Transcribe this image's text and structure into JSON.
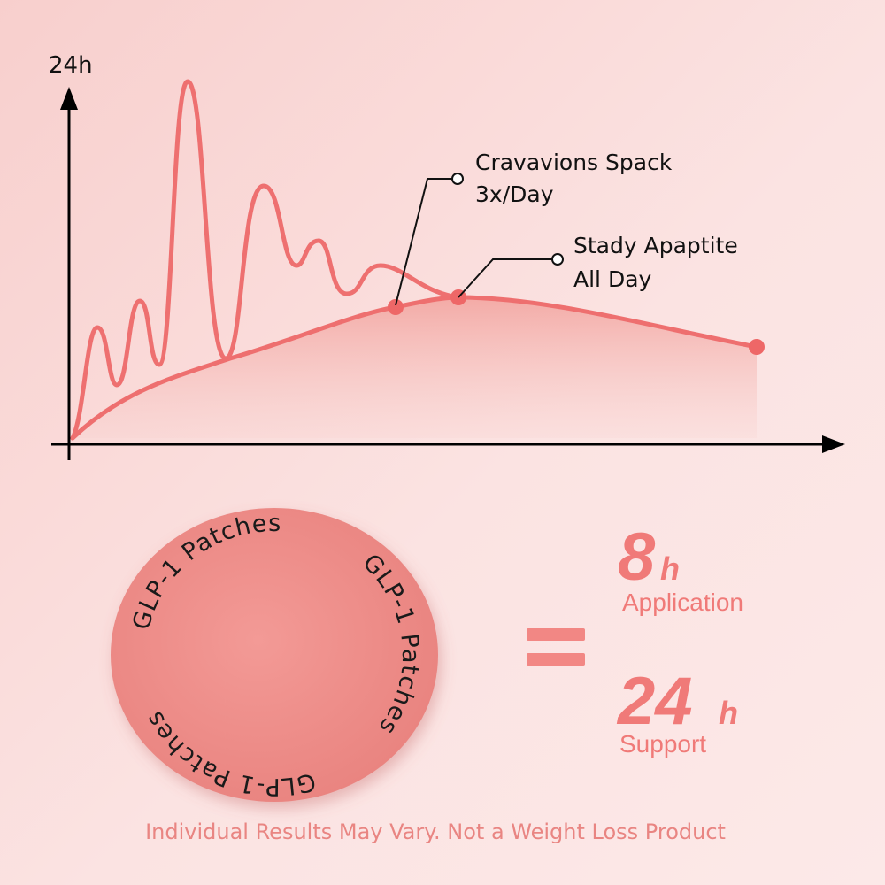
{
  "graph": {
    "y_axis_label": "24h",
    "annotations": [
      {
        "lines": [
          "Cravavions Spack",
          "3x/Day"
        ]
      },
      {
        "lines": [
          "Stady Apaptite",
          "All Day"
        ]
      }
    ]
  },
  "patch": {
    "ring_texts": [
      "GLP-1 Patches",
      "GLP-1 Patches",
      "GLP-1 Patches"
    ]
  },
  "claims": [
    {
      "number": "8",
      "unit": "h",
      "label": "Application"
    },
    {
      "number": "24",
      "unit": "h",
      "label": "Support"
    }
  ],
  "disclaimer": "Individual Results May Vary. Not a Weight Loss Product"
}
